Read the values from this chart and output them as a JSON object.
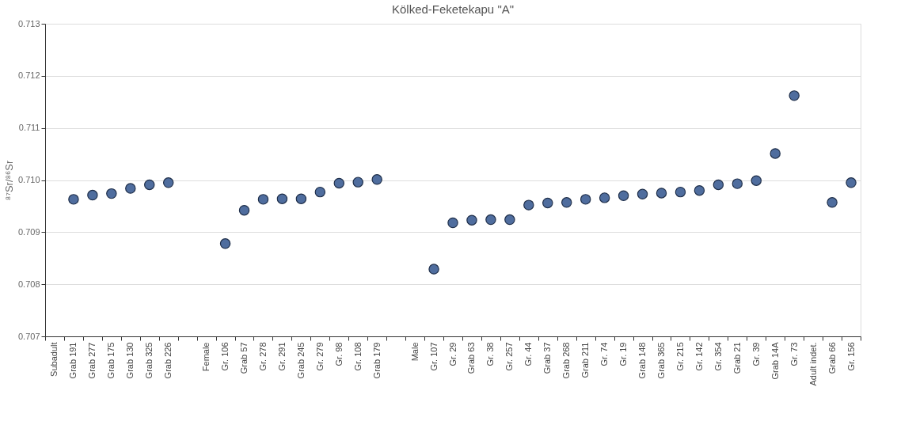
{
  "chart_data": {
    "type": "scatter",
    "title": "Kölked-Feketekapu \"A\"",
    "ylabel": "⁸⁷Sr/⁸⁶Sr",
    "categories": [
      "Subadult",
      "Grab 191",
      "Grab 277",
      "Grab 175",
      "Grab 130",
      "Grab 325",
      "Grab 226",
      null,
      "Female",
      "Gr. 106",
      "Grab 57",
      "Gr. 278",
      "Gr. 291",
      "Grab 245",
      "Gr. 279",
      "Gr. 98",
      "Gr. 108",
      "Grab 179",
      null,
      "Male",
      "Gr. 107",
      "Gr. 29",
      "Grab 63",
      "Gr. 38",
      "Gr. 257",
      "Gr. 44",
      "Grab 37",
      "Grab 268",
      "Grab 211",
      "Gr. 74",
      "Gr. 19",
      "Grab 148",
      "Grab 365",
      "Gr. 215",
      "Gr. 142",
      "Gr. 354",
      "Grab 21",
      "Gr. 39",
      "Grab 14A",
      "Gr. 73",
      "Adult indet.",
      "Grab 66",
      "Gr. 156"
    ],
    "series": [
      {
        "color": "#4f6d9e",
        "values": [
          null,
          0.70963,
          0.70971,
          0.70974,
          0.70984,
          0.70991,
          0.70995,
          null,
          null,
          0.70878,
          0.70942,
          0.70963,
          0.70964,
          0.70964,
          0.70977,
          0.70994,
          0.70996,
          0.71001,
          null,
          null,
          0.70829,
          0.70918,
          0.70923,
          0.70924,
          0.70924,
          0.70952,
          0.70956,
          0.70957,
          0.70963,
          0.70966,
          0.7097,
          0.70973,
          0.70975,
          0.70977,
          0.7098,
          0.70991,
          0.70993,
          0.70999,
          0.71051,
          0.71162,
          null,
          0.70957,
          0.70995
        ]
      }
    ],
    "ylim": [
      0.707,
      0.713
    ],
    "yticks": [
      0.707,
      0.708,
      0.709,
      {
        "value": 0.71,
        "label": "0.710"
      },
      0.711,
      0.712,
      0.713
    ],
    "grid": "y",
    "marker": "circle",
    "legend": false
  }
}
